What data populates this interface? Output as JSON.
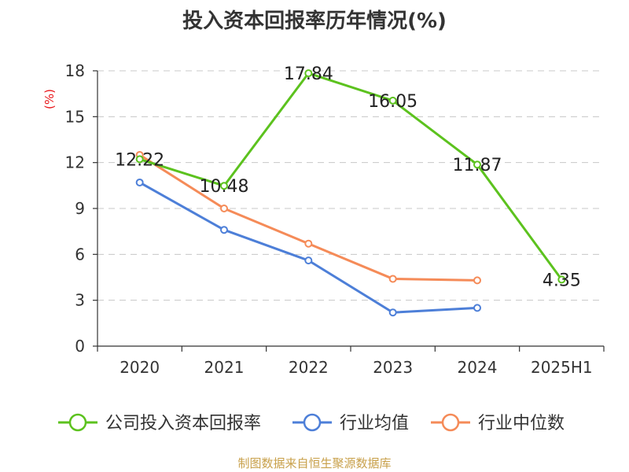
{
  "chart_data": {
    "type": "line",
    "title": "投入资本回报率历年情况(%)",
    "unit_label": "(%)",
    "categories": [
      "2020",
      "2021",
      "2022",
      "2023",
      "2024",
      "2025H1"
    ],
    "ylim": [
      0,
      18
    ],
    "yticks": [
      0,
      3,
      6,
      9,
      12,
      15,
      18
    ],
    "grid": true,
    "legend_position": "bottom",
    "series": [
      {
        "name": "公司投入资本回报率",
        "color": "#5cc21e",
        "values": [
          12.22,
          10.48,
          17.84,
          16.05,
          11.87,
          4.35
        ],
        "show_labels": true
      },
      {
        "name": "行业均值",
        "color": "#4d7fd8",
        "values": [
          10.7,
          7.6,
          5.6,
          2.2,
          2.5,
          null
        ],
        "show_labels": false
      },
      {
        "name": "行业中位数",
        "color": "#f58b58",
        "values": [
          12.5,
          9.0,
          6.7,
          4.4,
          4.3,
          null
        ],
        "show_labels": false
      }
    ]
  },
  "footer": {
    "source": "制图数据来自恒生聚源数据库"
  }
}
